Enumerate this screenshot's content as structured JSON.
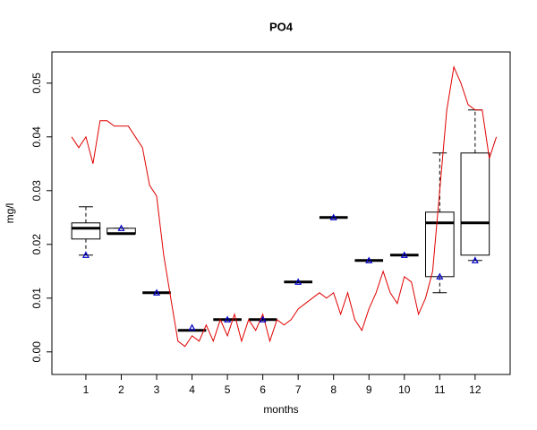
{
  "chart_data": {
    "type": "box",
    "title": "PO4",
    "xlabel": "months",
    "ylabel": "mg/l",
    "x": [
      1,
      2,
      3,
      4,
      5,
      6,
      7,
      8,
      9,
      10,
      11,
      12
    ],
    "min": [
      0.018,
      0.022,
      0.011,
      0.004,
      0.006,
      0.006,
      0.013,
      0.025,
      0.017,
      0.018,
      0.011,
      0.017
    ],
    "q1": [
      0.021,
      0.022,
      0.011,
      0.004,
      0.006,
      0.006,
      0.013,
      0.025,
      0.017,
      0.018,
      0.014,
      0.018
    ],
    "median": [
      0.023,
      0.022,
      0.011,
      0.004,
      0.006,
      0.006,
      0.013,
      0.025,
      0.017,
      0.018,
      0.024,
      0.024
    ],
    "q3": [
      0.024,
      0.023,
      0.011,
      0.004,
      0.006,
      0.006,
      0.013,
      0.025,
      0.017,
      0.018,
      0.026,
      0.037
    ],
    "max": [
      0.027,
      0.023,
      0.011,
      0.004,
      0.006,
      0.006,
      0.013,
      0.025,
      0.017,
      0.018,
      0.037,
      0.045
    ],
    "means": [
      0.018,
      0.023,
      0.011,
      0.0045,
      0.006,
      0.006,
      0.013,
      0.025,
      0.017,
      0.018,
      0.014,
      0.017
    ],
    "mean_color": "#0000cc",
    "line": {
      "color": "#e00000",
      "x": [
        0.6,
        0.8,
        1.0,
        1.2,
        1.4,
        1.6,
        1.8,
        2.0,
        2.2,
        2.4,
        2.6,
        2.8,
        3.0,
        3.2,
        3.4,
        3.6,
        3.8,
        4.0,
        4.2,
        4.4,
        4.6,
        4.8,
        5.0,
        5.2,
        5.4,
        5.6,
        5.8,
        6.0,
        6.2,
        6.4,
        6.6,
        6.8,
        7.0,
        7.2,
        7.4,
        7.6,
        7.8,
        8.0,
        8.2,
        8.4,
        8.6,
        8.8,
        9.0,
        9.2,
        9.4,
        9.6,
        9.8,
        10.0,
        10.2,
        10.4,
        10.6,
        10.8,
        11.0,
        11.2,
        11.4,
        11.6,
        11.8,
        12.0,
        12.2,
        12.4,
        12.6
      ],
      "values": [
        0.04,
        0.038,
        0.04,
        0.035,
        0.043,
        0.043,
        0.042,
        0.042,
        0.042,
        0.04,
        0.038,
        0.031,
        0.029,
        0.018,
        0.01,
        0.002,
        0.001,
        0.003,
        0.002,
        0.005,
        0.002,
        0.006,
        0.003,
        0.007,
        0.002,
        0.006,
        0.004,
        0.007,
        0.002,
        0.006,
        0.005,
        0.006,
        0.008,
        0.009,
        0.01,
        0.011,
        0.01,
        0.011,
        0.007,
        0.011,
        0.006,
        0.004,
        0.008,
        0.011,
        0.015,
        0.011,
        0.009,
        0.014,
        0.013,
        0.007,
        0.01,
        0.015,
        0.03,
        0.045,
        0.053,
        0.05,
        0.046,
        0.045,
        0.045,
        0.036,
        0.04
      ]
    },
    "xlim": [
      0.04,
      12.99
    ],
    "ylim": [
      -0.0042,
      0.0558
    ],
    "yticks": [
      {
        "value": 0,
        "label": "0.00"
      },
      0.01,
      0.02,
      0.03,
      0.04,
      0.05
    ]
  }
}
